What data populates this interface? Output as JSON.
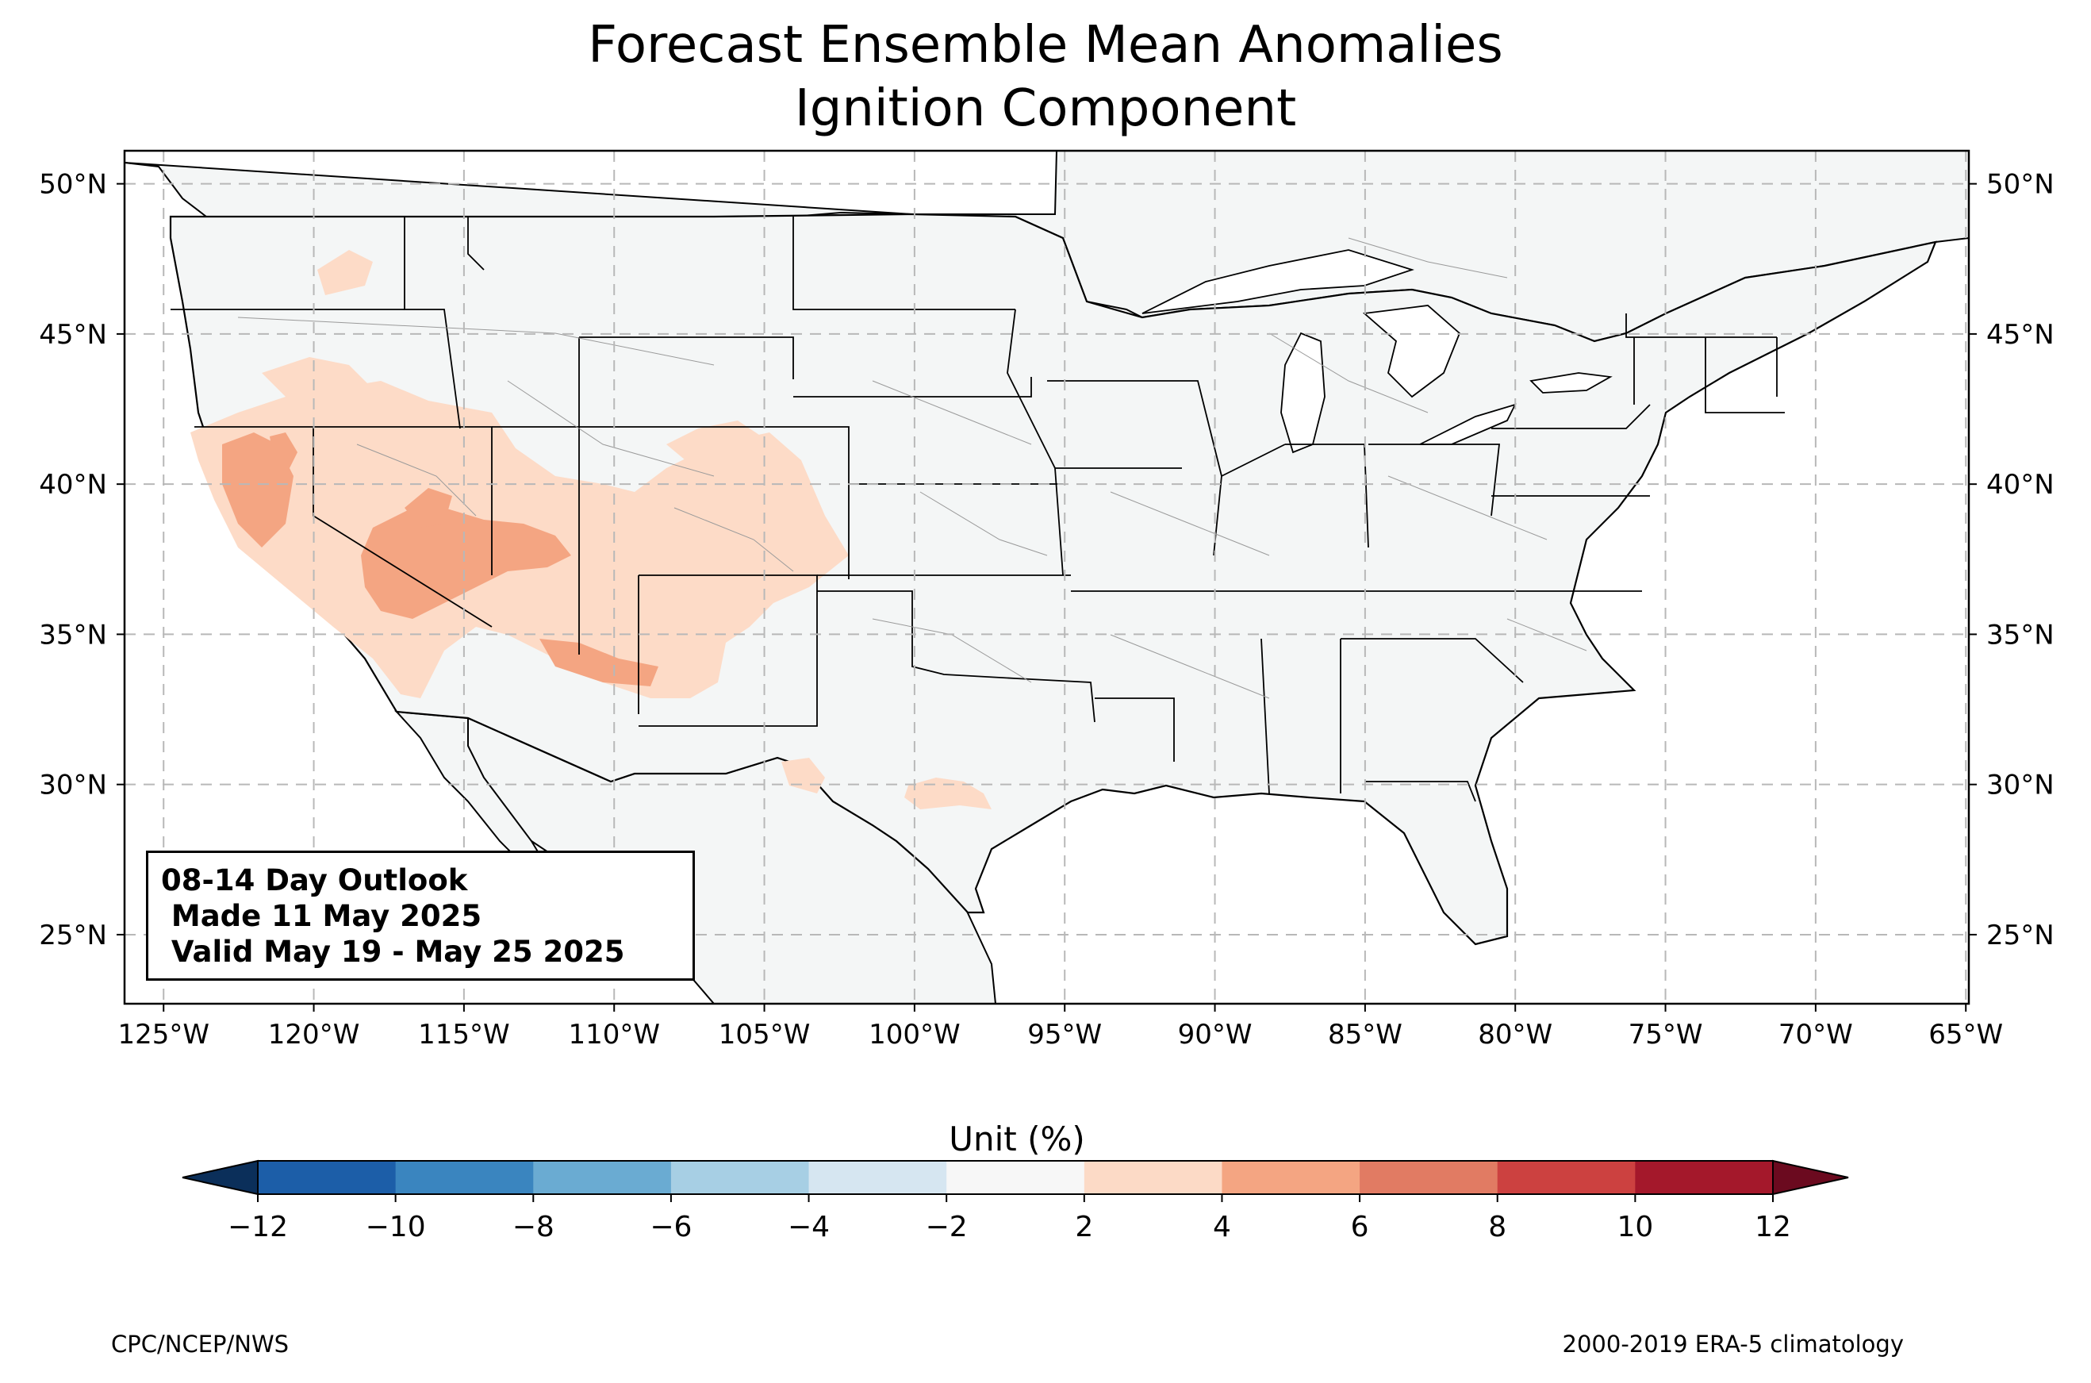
{
  "title": {
    "line1": "Forecast Ensemble Mean Anomalies",
    "line2": "Ignition Component"
  },
  "outlook": {
    "line1": "08-14 Day Outlook",
    "line2": " Made 11 May 2025",
    "line3": " Valid May 19 - May 25 2025"
  },
  "map": {
    "lon_range": [
      -126.3,
      -64.9
    ],
    "lat_range": [
      22.7,
      51.1
    ],
    "lon_ticks": [
      -125,
      -120,
      -115,
      -110,
      -105,
      -100,
      -95,
      -90,
      -85,
      -80,
      -75,
      -70,
      -65
    ],
    "lon_tick_labels": [
      "125°W",
      "120°W",
      "115°W",
      "110°W",
      "105°W",
      "100°W",
      "95°W",
      "90°W",
      "85°W",
      "80°W",
      "75°W",
      "70°W",
      "65°W"
    ],
    "lat_ticks": [
      25,
      30,
      35,
      40,
      45,
      50
    ],
    "lat_tick_labels": [
      "25°N",
      "30°N",
      "35°N",
      "40°N",
      "45°N",
      "50°N"
    ],
    "grid": true,
    "land_color": "#f4f6f6",
    "anomaly_colors": {
      "2-4": "#fddbc7",
      "4-6": "#f4a582"
    }
  },
  "colorbar": {
    "label": "Unit (%)",
    "ticks": [
      "−12",
      "−10",
      "−8",
      "−6",
      "−4",
      "−2",
      "2",
      "4",
      "6",
      "8",
      "10",
      "12"
    ],
    "colors": [
      "#1c5ea8",
      "#3a85bf",
      "#6aabd2",
      "#a7cfe4",
      "#d6e6f1",
      "#f7f7f7",
      "#fcdac6",
      "#f4a582",
      "#e17b63",
      "#cc4140",
      "#a4182b"
    ],
    "under_color": "#0b2f5a",
    "over_color": "#6b0a1f"
  },
  "footer": {
    "left": "CPC/NCEP/NWS",
    "right": "2000-2019 ERA-5 climatology"
  }
}
